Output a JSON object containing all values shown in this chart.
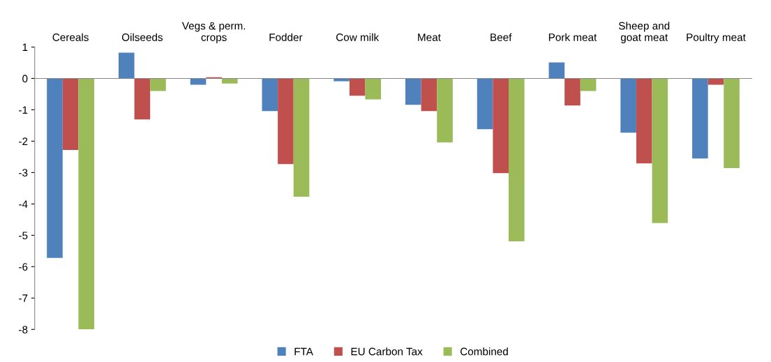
{
  "chart_data": {
    "type": "bar",
    "categories": [
      "Cereals",
      "Oilseeds",
      "Vegs & perm.\ncrops",
      "Fodder",
      "Cow milk",
      "Meat",
      "Beef",
      "Pork meat",
      "Sheep and\ngoat meat",
      "Poultry meat"
    ],
    "series": [
      {
        "name": "FTA",
        "color": "#4f81bd",
        "values": [
          -5.72,
          0.82,
          -0.2,
          -1.04,
          -0.09,
          -0.84,
          -1.62,
          0.51,
          -1.73,
          -2.55
        ]
      },
      {
        "name": "EU Carbon Tax",
        "color": "#c0504d",
        "values": [
          -2.28,
          -1.31,
          0.04,
          -2.73,
          -0.55,
          -1.04,
          -3.02,
          -0.86,
          -2.71,
          -0.2
        ]
      },
      {
        "name": "Combined",
        "color": "#9bbb59",
        "values": [
          -8.0,
          -0.4,
          -0.16,
          -3.77,
          -0.67,
          -2.04,
          -5.19,
          -0.4,
          -4.61,
          -2.86
        ]
      }
    ],
    "ylim": [
      -8,
      1
    ],
    "yticks": [
      -8,
      -7,
      -6,
      -5,
      -4,
      -3,
      -2,
      -1,
      0,
      1
    ],
    "legend": "bottom"
  }
}
